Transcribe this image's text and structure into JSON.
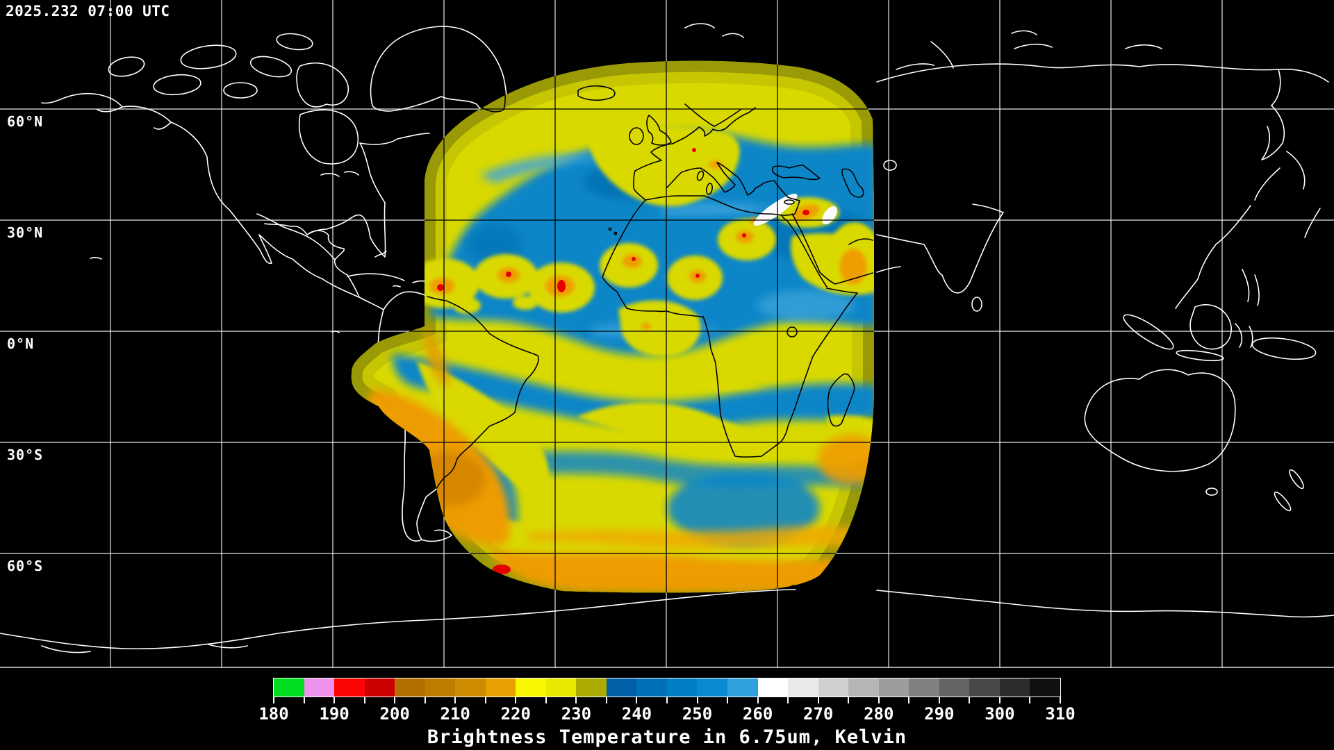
{
  "header": {
    "timestamp": "2025.232 07:00 UTC"
  },
  "map": {
    "background_color": "#000000",
    "grid_color": "#ffffff",
    "coastline_color_outside": "#ffffff",
    "coastline_color_inside": "#000000",
    "lat_labels": [
      {
        "text": "60°N"
      },
      {
        "text": "30°N"
      },
      {
        "text": "0°N"
      },
      {
        "text": "30°S"
      },
      {
        "text": "60°S"
      }
    ]
  },
  "colorbar": {
    "caption": "Brightness Temperature in 6.75um, Kelvin",
    "min": 180,
    "max": 310,
    "minor_step": 5,
    "tick_labels": [
      "180",
      "190",
      "200",
      "210",
      "220",
      "230",
      "240",
      "250",
      "260",
      "270",
      "280",
      "290",
      "300",
      "310"
    ],
    "stops": [
      {
        "t": 180,
        "color": "#00dc1e"
      },
      {
        "t": 185,
        "color": "#ec92ec"
      },
      {
        "t": 190,
        "color": "#fc0404"
      },
      {
        "t": 195,
        "color": "#cc0000"
      },
      {
        "t": 200,
        "color": "#b27000"
      },
      {
        "t": 205,
        "color": "#bf7d00"
      },
      {
        "t": 210,
        "color": "#cd8b00"
      },
      {
        "t": 215,
        "color": "#e8a000"
      },
      {
        "t": 220,
        "color": "#f8f600"
      },
      {
        "t": 225,
        "color": "#e8e800"
      },
      {
        "t": 230,
        "color": "#aaaa00"
      },
      {
        "t": 235,
        "color": "#0060a8"
      },
      {
        "t": 240,
        "color": "#0070ba"
      },
      {
        "t": 245,
        "color": "#007ec6"
      },
      {
        "t": 250,
        "color": "#0a8ad0"
      },
      {
        "t": 255,
        "color": "#30a0dc"
      },
      {
        "t": 260,
        "color": "#ffffff"
      },
      {
        "t": 265,
        "color": "#eaeaea"
      },
      {
        "t": 270,
        "color": "#d0d0d0"
      },
      {
        "t": 275,
        "color": "#b6b6b6"
      },
      {
        "t": 280,
        "color": "#9c9c9c"
      },
      {
        "t": 285,
        "color": "#808080"
      },
      {
        "t": 290,
        "color": "#646464"
      },
      {
        "t": 295,
        "color": "#484848"
      },
      {
        "t": 300,
        "color": "#2c2c2c"
      },
      {
        "t": 305,
        "color": "#101010"
      }
    ]
  },
  "chart_data": {
    "type": "heatmap",
    "title": "Brightness Temperature in 6.75um, Kelvin",
    "legend_range": [
      180,
      310
    ],
    "legend_tick_step": 10,
    "legend_position": "bottom",
    "notes": "Geostationary water-vapor brightness temperature swath over Africa/Atlantic on a global equirectangular map; grid every 30 degrees"
  }
}
